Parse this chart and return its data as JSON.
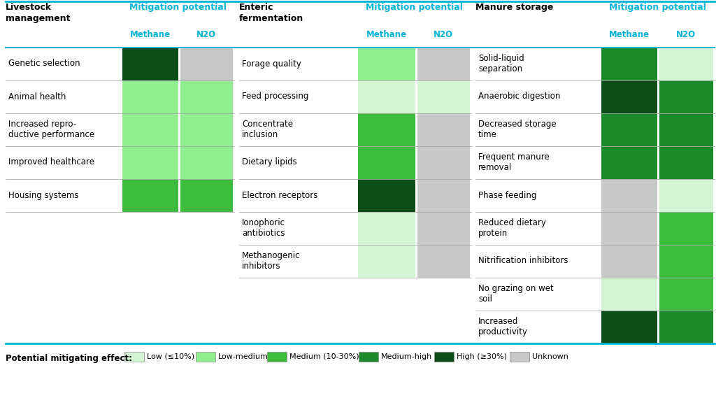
{
  "colors": {
    "low": "#d4f5d4",
    "low_medium": "#90ee90",
    "medium": "#3dbb3d",
    "medium_high": "#1a8a2a",
    "high": "#0d4d1a",
    "unknown": "#c8c8c8",
    "empty": "#ffffff",
    "header_blue": "#00b4d8",
    "line_blue": "#00b4d8",
    "text_dark": "#111111"
  },
  "livestock_rows": [
    {
      "label": "Genetic selection",
      "methane": "high",
      "n2o": "unknown"
    },
    {
      "label": "Animal health",
      "methane": "low_medium",
      "n2o": "low_medium"
    },
    {
      "label": "Increased repro-\nductive performance",
      "methane": "low_medium",
      "n2o": "low_medium"
    },
    {
      "label": "Improved healthcare",
      "methane": "low_medium",
      "n2o": "low_medium"
    },
    {
      "label": "Housing systems",
      "methane": "medium",
      "n2o": "medium"
    }
  ],
  "enteric_rows": [
    {
      "label": "Forage quality",
      "methane": "low_medium",
      "n2o": "unknown"
    },
    {
      "label": "Feed processing",
      "methane": "low",
      "n2o": "low"
    },
    {
      "label": "Concentrate\ninclusion",
      "methane": "medium",
      "n2o": "unknown"
    },
    {
      "label": "Dietary lipids",
      "methane": "medium",
      "n2o": "unknown"
    },
    {
      "label": "Electron receptors",
      "methane": "high",
      "n2o": "unknown"
    },
    {
      "label": "Ionophoric\nantibiotics",
      "methane": "low",
      "n2o": "unknown"
    },
    {
      "label": "Methanogenic\ninhibitors",
      "methane": "low",
      "n2o": "unknown"
    }
  ],
  "manure_rows": [
    {
      "label": "Solid-liquid\nseparation",
      "methane": "medium_high",
      "n2o": "low"
    },
    {
      "label": "Anaerobic digestion",
      "methane": "high",
      "n2o": "medium_high"
    },
    {
      "label": "Decreased storage\ntime",
      "methane": "medium_high",
      "n2o": "medium_high"
    },
    {
      "label": "Frequent manure\nremoval",
      "methane": "medium_high",
      "n2o": "medium_high"
    },
    {
      "label": "Phase feeding",
      "methane": "unknown",
      "n2o": "low"
    },
    {
      "label": "Reduced dietary\nprotein",
      "methane": "unknown",
      "n2o": "medium"
    },
    {
      "label": "Nitrification inhibitors",
      "methane": "unknown",
      "n2o": "medium"
    },
    {
      "label": "No grazing on wet\nsoil",
      "methane": "low",
      "n2o": "medium"
    },
    {
      "label": "Increased\nproductivity",
      "methane": "high",
      "n2o": "medium_high"
    }
  ],
  "legend_items": [
    {
      "key": "low",
      "label": "Low (≤10%)"
    },
    {
      "key": "low_medium",
      "label": "Low-medium"
    },
    {
      "key": "medium",
      "label": "Medium (10-30%)"
    },
    {
      "key": "medium_high",
      "label": "Medium-high"
    },
    {
      "key": "high",
      "label": "High (≥30%)"
    },
    {
      "key": "unknown",
      "label": "Unknown"
    }
  ]
}
